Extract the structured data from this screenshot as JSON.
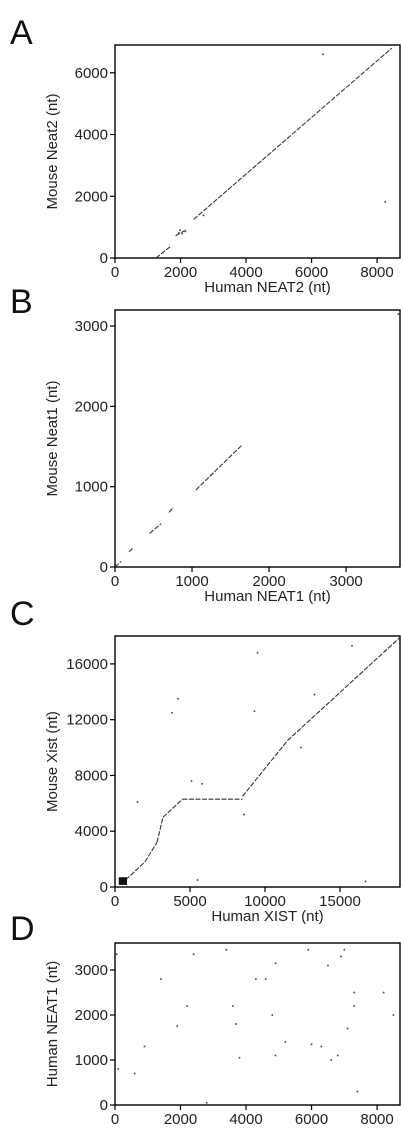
{
  "chart_data": [
    {
      "type": "scatter",
      "panel_label": "A",
      "xlabel": "Human NEAT2 (nt)",
      "ylabel": "Mouse Neat2 (nt)",
      "xlim": [
        0,
        8700
      ],
      "ylim": [
        0,
        6900
      ],
      "x_ticks": [
        0,
        2000,
        4000,
        6000,
        8000
      ],
      "y_ticks": [
        0,
        2000,
        4000,
        6000
      ],
      "diagonal_segments": [
        {
          "x": [
            1250,
            1700
          ],
          "y": [
            0,
            380
          ]
        },
        {
          "x": [
            1850,
            2150
          ],
          "y": [
            720,
            900
          ]
        },
        {
          "x": [
            2400,
            8450
          ],
          "y": [
            1250,
            6800
          ]
        }
      ],
      "points": [
        {
          "x": 1950,
          "y": 820
        },
        {
          "x": 2050,
          "y": 790
        },
        {
          "x": 1980,
          "y": 900
        },
        {
          "x": 2150,
          "y": 860
        },
        {
          "x": 2700,
          "y": 1380
        },
        {
          "x": 6350,
          "y": 6600
        },
        {
          "x": 8250,
          "y": 1820
        }
      ]
    },
    {
      "type": "scatter",
      "panel_label": "B",
      "xlabel": "Human NEAT1 (nt)",
      "ylabel": "Mouse Neat1 (nt)",
      "xlim": [
        0,
        3700
      ],
      "ylim": [
        0,
        3200
      ],
      "x_ticks": [
        0,
        1000,
        2000,
        3000
      ],
      "y_ticks": [
        0,
        1000,
        2000,
        3000
      ],
      "diagonal_segments": [
        {
          "x": [
            0,
            80
          ],
          "y": [
            0,
            70
          ]
        },
        {
          "x": [
            180,
            240
          ],
          "y": [
            190,
            240
          ]
        },
        {
          "x": [
            450,
            600
          ],
          "y": [
            420,
            540
          ]
        },
        {
          "x": [
            700,
            760
          ],
          "y": [
            680,
            740
          ]
        },
        {
          "x": [
            1050,
            1650
          ],
          "y": [
            960,
            1520
          ]
        }
      ],
      "points": [
        {
          "x": 3680,
          "y": 3150
        }
      ]
    },
    {
      "type": "scatter",
      "panel_label": "C",
      "xlabel": "Human XIST (nt)",
      "ylabel": "Mouse Xist (nt)",
      "xlim": [
        0,
        19000
      ],
      "ylim": [
        0,
        18000
      ],
      "x_ticks": [
        0,
        5000,
        10000,
        15000
      ],
      "y_ticks": [
        0,
        4000,
        8000,
        12000,
        16000
      ],
      "diagonal_segments": [
        {
          "x": [
            400,
            2000
          ],
          "y": [
            200,
            1800
          ]
        },
        {
          "x": [
            2000,
            2800
          ],
          "y": [
            1800,
            3200
          ]
        },
        {
          "x": [
            2800,
            3200
          ],
          "y": [
            3200,
            5000
          ]
        },
        {
          "x": [
            3200,
            4500
          ],
          "y": [
            5000,
            6300
          ]
        },
        {
          "x": [
            4500,
            8500
          ],
          "y": [
            6300,
            6300
          ]
        },
        {
          "x": [
            8500,
            11500
          ],
          "y": [
            6500,
            10500
          ]
        },
        {
          "x": [
            11500,
            19000
          ],
          "y": [
            10500,
            17900
          ]
        }
      ],
      "block": {
        "x": [
          250,
          800
        ],
        "y": [
          150,
          700
        ]
      },
      "points": [
        {
          "x": 3800,
          "y": 12500
        },
        {
          "x": 4200,
          "y": 13500
        },
        {
          "x": 9500,
          "y": 16800
        },
        {
          "x": 5800,
          "y": 7400
        },
        {
          "x": 5100,
          "y": 7600
        },
        {
          "x": 8600,
          "y": 5200
        },
        {
          "x": 9300,
          "y": 12600
        },
        {
          "x": 12400,
          "y": 10000
        },
        {
          "x": 15800,
          "y": 17300
        },
        {
          "x": 13300,
          "y": 13800
        },
        {
          "x": 5500,
          "y": 500
        },
        {
          "x": 16700,
          "y": 400
        },
        {
          "x": 1500,
          "y": 6100
        }
      ]
    },
    {
      "type": "scatter",
      "panel_label": "D",
      "xlabel": "Human NEAT2 (nt)",
      "ylabel": "Human NEAT1 (nt)",
      "xlim": [
        0,
        8700
      ],
      "ylim": [
        0,
        3600
      ],
      "x_ticks": [
        0,
        2000,
        4000,
        6000,
        8000
      ],
      "y_ticks": [
        0,
        1000,
        2000,
        3000
      ],
      "diagonal_segments": [],
      "points": [
        {
          "x": 50,
          "y": 3350
        },
        {
          "x": 100,
          "y": 800
        },
        {
          "x": 600,
          "y": 700
        },
        {
          "x": 900,
          "y": 1300
        },
        {
          "x": 1400,
          "y": 2800
        },
        {
          "x": 1900,
          "y": 1750
        },
        {
          "x": 2200,
          "y": 2200
        },
        {
          "x": 2400,
          "y": 3350
        },
        {
          "x": 2800,
          "y": 50
        },
        {
          "x": 3400,
          "y": 3450
        },
        {
          "x": 3600,
          "y": 2200
        },
        {
          "x": 3700,
          "y": 1800
        },
        {
          "x": 3800,
          "y": 1050
        },
        {
          "x": 4300,
          "y": 2800
        },
        {
          "x": 4600,
          "y": 2800
        },
        {
          "x": 4800,
          "y": 2000
        },
        {
          "x": 4900,
          "y": 3150
        },
        {
          "x": 4900,
          "y": 1100
        },
        {
          "x": 5200,
          "y": 1400
        },
        {
          "x": 5900,
          "y": 3450
        },
        {
          "x": 6000,
          "y": 1350
        },
        {
          "x": 6300,
          "y": 1300
        },
        {
          "x": 6500,
          "y": 3100
        },
        {
          "x": 6600,
          "y": 1000
        },
        {
          "x": 6800,
          "y": 1100
        },
        {
          "x": 6900,
          "y": 3300
        },
        {
          "x": 7000,
          "y": 3450
        },
        {
          "x": 7100,
          "y": 1700
        },
        {
          "x": 7300,
          "y": 2500
        },
        {
          "x": 7400,
          "y": 300
        },
        {
          "x": 7300,
          "y": 2200
        },
        {
          "x": 8200,
          "y": 2500
        },
        {
          "x": 8500,
          "y": 2000
        }
      ]
    }
  ]
}
